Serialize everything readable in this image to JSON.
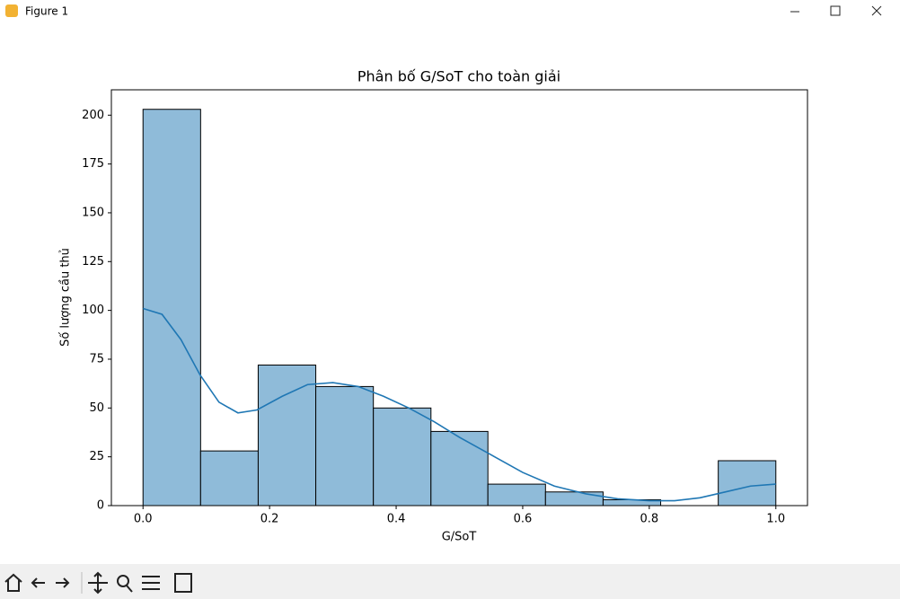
{
  "window": {
    "title": "Figure 1"
  },
  "chart_data": {
    "type": "histogram",
    "title": "Phân bố G/SoT cho toàn giải",
    "x_label": "G/SoT",
    "y_label": "Số lượng cầu thủ",
    "bins": [
      0,
      0.091,
      0.182,
      0.273,
      0.364,
      0.455,
      0.545,
      0.636,
      0.727,
      0.818,
      0.909,
      1.0
    ],
    "values": [
      203,
      28,
      72,
      61,
      50,
      38,
      11,
      7,
      3,
      0,
      23
    ],
    "color": "#8fbbd9",
    "edge_color": "#000000",
    "kde": {
      "color": "#1f77b4",
      "x": [
        0,
        0.03,
        0.06,
        0.09,
        0.12,
        0.15,
        0.18,
        0.22,
        0.26,
        0.3,
        0.34,
        0.38,
        0.42,
        0.46,
        0.5,
        0.55,
        0.6,
        0.65,
        0.7,
        0.75,
        0.8,
        0.84,
        0.88,
        0.92,
        0.96,
        1.0
      ],
      "values": [
        101,
        98,
        85,
        67,
        53,
        47.5,
        49,
        56,
        62,
        63,
        61,
        56,
        50,
        43,
        35,
        26,
        17,
        10,
        6,
        3.5,
        2.5,
        2.5,
        4,
        7,
        10,
        11
      ]
    },
    "xlim": [
      -0.05,
      1.05
    ],
    "ylim": [
      0,
      213
    ],
    "xticks": [
      {
        "value": 0,
        "label": "0.0"
      },
      0.2,
      0.4,
      0.6,
      0.8,
      {
        "value": 1,
        "label": "1.0"
      }
    ],
    "yticks": [
      0,
      25,
      50,
      75,
      100,
      125,
      150,
      175,
      200
    ]
  }
}
